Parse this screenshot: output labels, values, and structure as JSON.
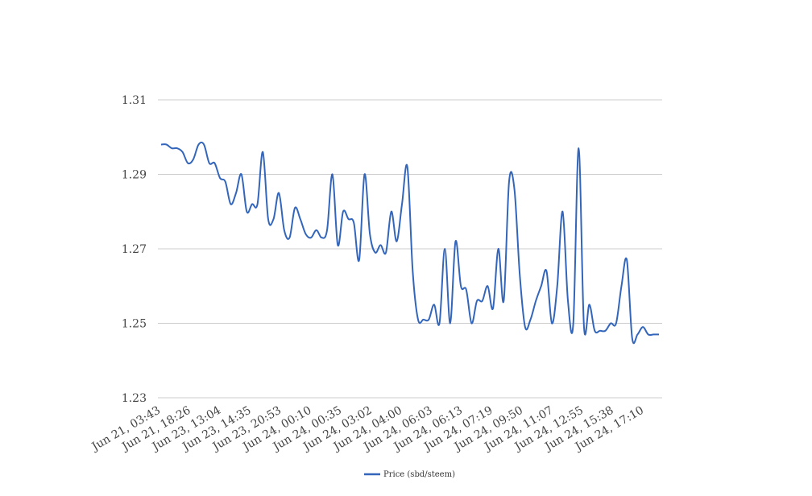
{
  "chart_data": {
    "type": "line",
    "title": "",
    "xlabel": "",
    "ylabel": "",
    "ylim": [
      1.23,
      1.31
    ],
    "yticks": [
      "1.31",
      "1.29",
      "1.27",
      "1.25",
      "1.23"
    ],
    "grid": "horizontal",
    "legend_position": "bottom-center",
    "line_color": "#3366bb",
    "x_tick_labels": [
      "Jun 21, 03:43",
      "Jun 21, 18:26",
      "Jun 23, 13:04",
      "Jun 23, 14:35",
      "Jun 23, 20:53",
      "Jun 24, 00:10",
      "Jun 24, 00:35",
      "Jun 24, 03:02",
      "Jun 24, 04:00",
      "Jun 24, 06:03",
      "Jun 24, 06:13",
      "Jun 24, 07:19",
      "Jun 24, 09:50",
      "Jun 24, 11:07",
      "Jun 24, 12:55",
      "Jun 24, 15:38",
      "Jun 24, 17:10"
    ],
    "series": [
      {
        "name": "Price (sbd/steem)",
        "values": [
          1.298,
          1.298,
          1.297,
          1.297,
          1.296,
          1.293,
          1.294,
          1.298,
          1.298,
          1.293,
          1.293,
          1.289,
          1.288,
          1.282,
          1.285,
          1.29,
          1.28,
          1.282,
          1.282,
          1.296,
          1.278,
          1.278,
          1.285,
          1.275,
          1.273,
          1.281,
          1.278,
          1.274,
          1.273,
          1.275,
          1.273,
          1.275,
          1.29,
          1.271,
          1.28,
          1.278,
          1.277,
          1.267,
          1.29,
          1.274,
          1.269,
          1.271,
          1.269,
          1.28,
          1.272,
          1.282,
          1.292,
          1.264,
          1.251,
          1.251,
          1.251,
          1.255,
          1.25,
          1.27,
          1.25,
          1.272,
          1.26,
          1.259,
          1.25,
          1.256,
          1.256,
          1.26,
          1.254,
          1.27,
          1.256,
          1.288,
          1.286,
          1.263,
          1.249,
          1.251,
          1.256,
          1.26,
          1.264,
          1.25,
          1.26,
          1.28,
          1.256,
          1.25,
          1.297,
          1.249,
          1.255,
          1.248,
          1.248,
          1.248,
          1.25,
          1.25,
          1.26,
          1.267,
          1.246,
          1.247,
          1.249,
          1.247,
          1.247,
          1.247
        ]
      }
    ]
  }
}
